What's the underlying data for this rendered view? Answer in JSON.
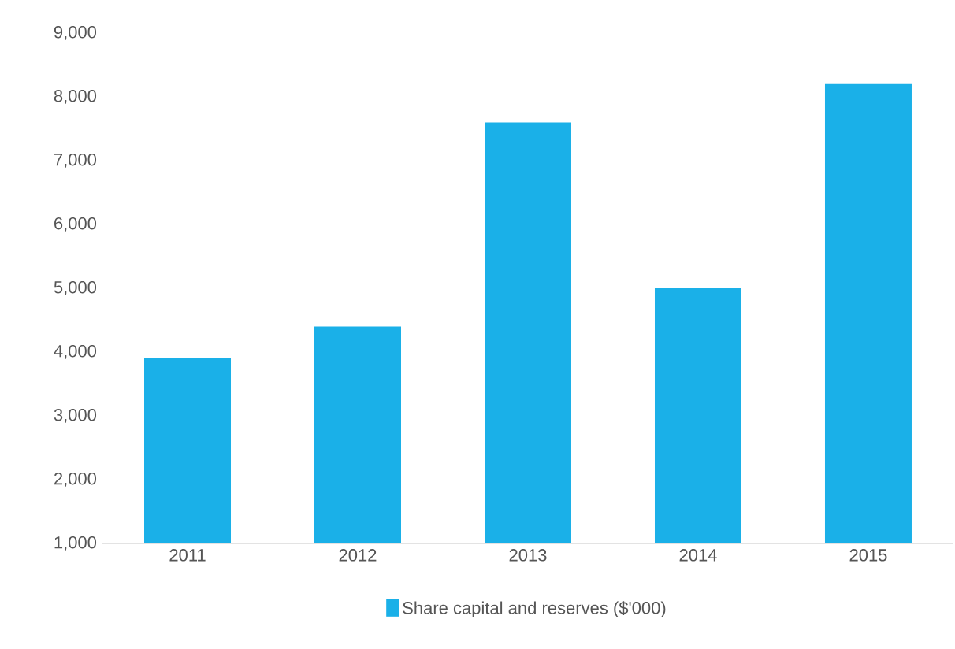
{
  "chart_data": {
    "type": "bar",
    "categories": [
      "2011",
      "2012",
      "2013",
      "2014",
      "2015"
    ],
    "series": [
      {
        "name": "Share capital and reserves ($'000)",
        "color": "#1ab0e8",
        "values": [
          3900,
          4400,
          7600,
          5000,
          8200
        ]
      }
    ],
    "ylim": [
      1000,
      9000
    ],
    "yticks": [
      {
        "value": 1000,
        "label": "1,000"
      },
      {
        "value": 2000,
        "label": "2,000"
      },
      {
        "value": 3000,
        "label": "3,000"
      },
      {
        "value": 4000,
        "label": "4,000"
      },
      {
        "value": 5000,
        "label": "5,000"
      },
      {
        "value": 6000,
        "label": "6,000"
      },
      {
        "value": 7000,
        "label": "7,000"
      },
      {
        "value": 8000,
        "label": "8,000"
      },
      {
        "value": 9000,
        "label": "9,000"
      }
    ],
    "grid": false,
    "legend": "bottom"
  }
}
